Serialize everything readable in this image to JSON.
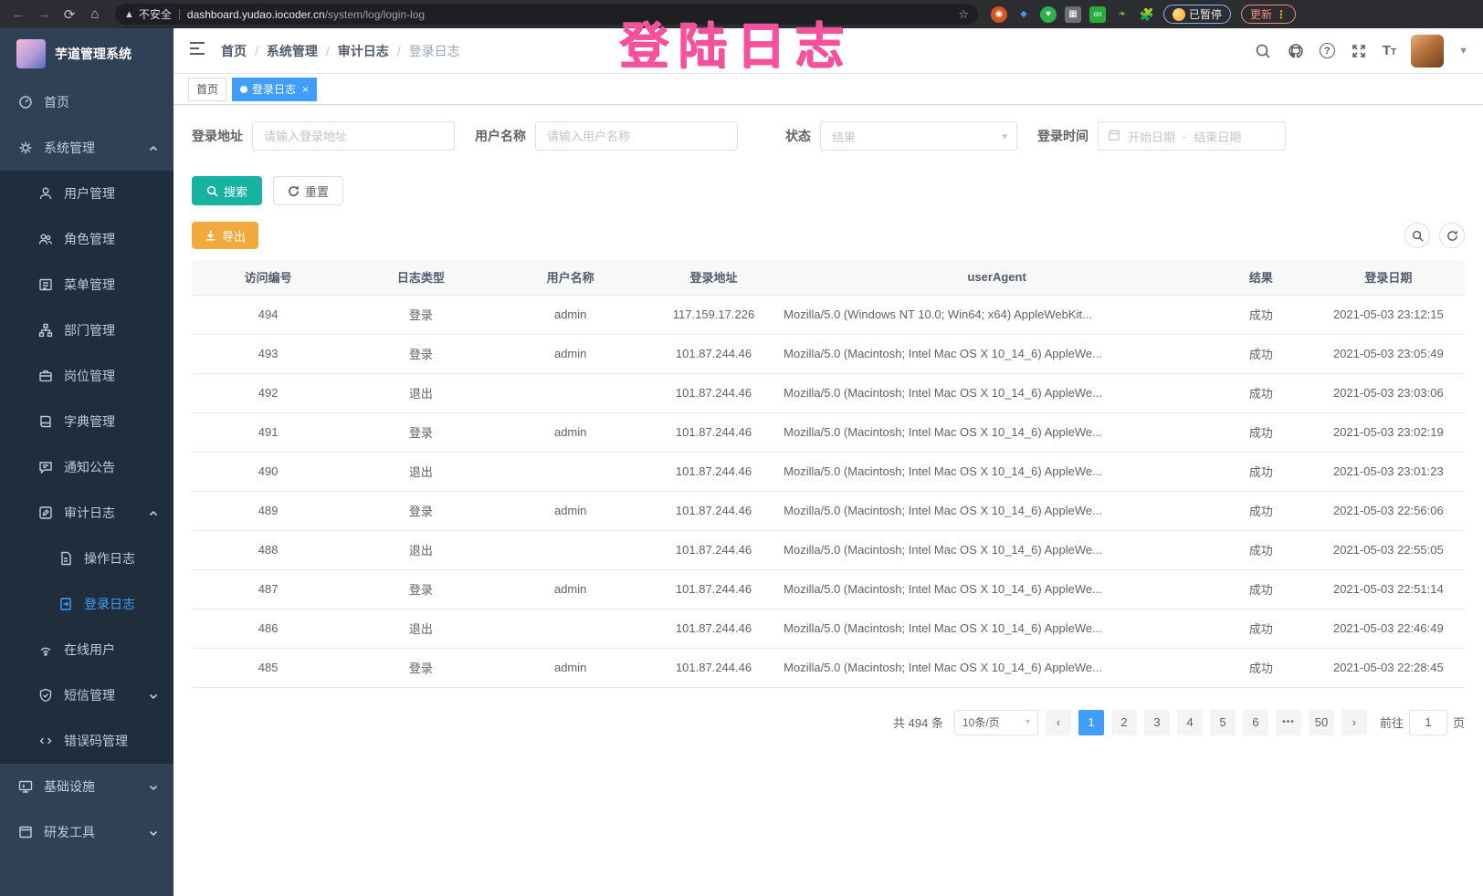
{
  "overlay": {
    "annotation": "登陆日志"
  },
  "colors": {
    "primary": "#409eff",
    "sidebar_bg": "#304156",
    "submenu_bg": "#1f2d3d",
    "search_button": "#16b3a3",
    "export_button": "#f2aa3d",
    "annotation_pink": "#fb4f9d",
    "update_pill": "#f28b82"
  },
  "browser": {
    "security_label": "不安全",
    "url_domain": "dashboard.yudao.iocoder.cn",
    "url_path": "/system/log/login-log",
    "paused_badge": "已暂停",
    "update_button": "更新",
    "extension_list_badge": "on"
  },
  "sidebar": {
    "logo_title": "芋道管理系统",
    "items": [
      {
        "label": "首页",
        "icon": "dashboard-icon",
        "level": 1
      },
      {
        "label": "系统管理",
        "icon": "gear-icon",
        "level": 1,
        "expanded": true
      },
      {
        "label": "用户管理",
        "icon": "user-icon",
        "level": 2
      },
      {
        "label": "角色管理",
        "icon": "roles-icon",
        "level": 2
      },
      {
        "label": "菜单管理",
        "icon": "menu-icon",
        "level": 2
      },
      {
        "label": "部门管理",
        "icon": "dept-tree-icon",
        "level": 2
      },
      {
        "label": "岗位管理",
        "icon": "post-icon",
        "level": 2
      },
      {
        "label": "字典管理",
        "icon": "dict-icon",
        "level": 2
      },
      {
        "label": "通知公告",
        "icon": "notice-icon",
        "level": 2
      },
      {
        "label": "审计日志",
        "icon": "audit-log-icon",
        "level": 2,
        "expanded": true
      },
      {
        "label": "操作日志",
        "icon": "operation-log-icon",
        "level": 3
      },
      {
        "label": "登录日志",
        "icon": "login-log-icon",
        "level": 3,
        "active": true
      },
      {
        "label": "在线用户",
        "icon": "online-users-icon",
        "level": 2
      },
      {
        "label": "短信管理",
        "icon": "sms-icon",
        "level": 2,
        "collapsed": true
      },
      {
        "label": "错误码管理",
        "icon": "error-code-icon",
        "level": 2
      },
      {
        "label": "基础设施",
        "icon": "infrastructure-icon",
        "level": 1,
        "collapsed": true
      },
      {
        "label": "研发工具",
        "icon": "devtools-icon",
        "level": 1,
        "collapsed": true
      }
    ]
  },
  "breadcrumb": {
    "items": [
      "首页",
      "系统管理",
      "审计日志"
    ],
    "current": "登录日志"
  },
  "tags": {
    "home": "首页",
    "active_tag": "登录日志"
  },
  "filters": {
    "login_address": {
      "label": "登录地址",
      "placeholder": "请输入登录地址"
    },
    "username": {
      "label": "用户名称",
      "placeholder": "请输入用户名称"
    },
    "status": {
      "label": "状态",
      "placeholder": "结果"
    },
    "login_time": {
      "label": "登录时间",
      "start_placeholder": "开始日期",
      "separator": "-",
      "end_placeholder": "结束日期"
    }
  },
  "actions": {
    "search": "搜索",
    "reset": "重置",
    "export": "导出"
  },
  "table": {
    "columns": [
      "访问编号",
      "日志类型",
      "用户名称",
      "登录地址",
      "userAgent",
      "结果",
      "登录日期"
    ],
    "rows": [
      [
        "494",
        "登录",
        "admin",
        "117.159.17.226",
        "Mozilla/5.0 (Windows NT 10.0; Win64; x64) AppleWebKit...",
        "成功",
        "2021-05-03 23:12:15"
      ],
      [
        "493",
        "登录",
        "admin",
        "101.87.244.46",
        "Mozilla/5.0 (Macintosh; Intel Mac OS X 10_14_6) AppleWe...",
        "成功",
        "2021-05-03 23:05:49"
      ],
      [
        "492",
        "退出",
        "",
        "101.87.244.46",
        "Mozilla/5.0 (Macintosh; Intel Mac OS X 10_14_6) AppleWe...",
        "成功",
        "2021-05-03 23:03:06"
      ],
      [
        "491",
        "登录",
        "admin",
        "101.87.244.46",
        "Mozilla/5.0 (Macintosh; Intel Mac OS X 10_14_6) AppleWe...",
        "成功",
        "2021-05-03 23:02:19"
      ],
      [
        "490",
        "退出",
        "",
        "101.87.244.46",
        "Mozilla/5.0 (Macintosh; Intel Mac OS X 10_14_6) AppleWe...",
        "成功",
        "2021-05-03 23:01:23"
      ],
      [
        "489",
        "登录",
        "admin",
        "101.87.244.46",
        "Mozilla/5.0 (Macintosh; Intel Mac OS X 10_14_6) AppleWe...",
        "成功",
        "2021-05-03 22:56:06"
      ],
      [
        "488",
        "退出",
        "",
        "101.87.244.46",
        "Mozilla/5.0 (Macintosh; Intel Mac OS X 10_14_6) AppleWe...",
        "成功",
        "2021-05-03 22:55:05"
      ],
      [
        "487",
        "登录",
        "admin",
        "101.87.244.46",
        "Mozilla/5.0 (Macintosh; Intel Mac OS X 10_14_6) AppleWe...",
        "成功",
        "2021-05-03 22:51:14"
      ],
      [
        "486",
        "退出",
        "",
        "101.87.244.46",
        "Mozilla/5.0 (Macintosh; Intel Mac OS X 10_14_6) AppleWe...",
        "成功",
        "2021-05-03 22:46:49"
      ],
      [
        "485",
        "登录",
        "admin",
        "101.87.244.46",
        "Mozilla/5.0 (Macintosh; Intel Mac OS X 10_14_6) AppleWe...",
        "成功",
        "2021-05-03 22:28:45"
      ]
    ]
  },
  "pagination": {
    "total": "共 494 条",
    "page_size": "10条/页",
    "pages": [
      "1",
      "2",
      "3",
      "4",
      "5",
      "6",
      "•••",
      "50"
    ],
    "active_page": "1",
    "prev": "‹",
    "next": "›",
    "goto_label": "前往",
    "goto_value": "1",
    "goto_suffix": "页"
  }
}
